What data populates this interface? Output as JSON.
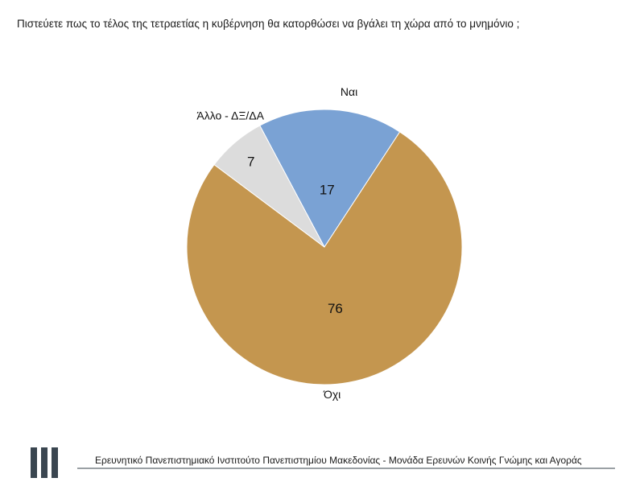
{
  "question": "Πιστεύετε πως το τέλος της τετραετίας η κυβέρνηση θα κατορθώσει να βγάλει τη χώρα από το μνημόνιο ;",
  "chart_data": {
    "type": "pie",
    "slices": [
      {
        "name": "Ναι",
        "value": 17,
        "color": "#7aa2d4"
      },
      {
        "name": "Όχι",
        "value": 76,
        "color": "#c4964f"
      },
      {
        "name": "Άλλο - ΔΞ/ΔΑ",
        "value": 7,
        "color": "#dcdcdc"
      }
    ],
    "start_angle_deg": -28,
    "direction": "clockwise"
  },
  "footer": {
    "text": "Ερευνητικό Πανεπιστημιακό Ινστιτούτο Πανεπιστημίου Μακεδονίας - Μονάδα Ερευνών Κοινής Γνώμης και Αγοράς"
  }
}
